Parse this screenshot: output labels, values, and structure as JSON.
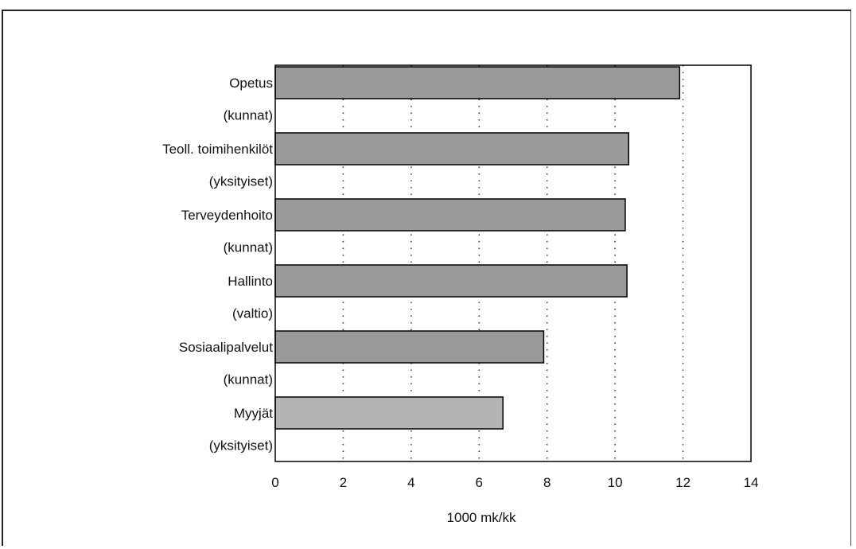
{
  "chart_data": {
    "type": "bar",
    "orientation": "horizontal",
    "categories": [
      [
        "Opetus",
        "(kunnat)"
      ],
      [
        "Teoll. toimihenkilöt",
        "(yksityiset)"
      ],
      [
        "Terveydenhoito",
        "(kunnat)"
      ],
      [
        "Hallinto",
        "(valtio)"
      ],
      [
        "Sosiaalipalvelut",
        "(kunnat)"
      ],
      [
        "Myyjät",
        "(yksityiset)"
      ]
    ],
    "values": [
      11.9,
      10.4,
      10.3,
      10.35,
      7.9,
      6.7
    ],
    "xlabel": "1000 mk/kk",
    "xlim": [
      0,
      14
    ],
    "xticks": [
      "0",
      "2",
      "4",
      "6",
      "8",
      "10",
      "12",
      "14"
    ],
    "grid": "vertical dotted",
    "colors": {
      "bar": "#9a9a9a",
      "bar_light": "#b4b4b4",
      "grid": "#333333",
      "axis": "#000000"
    }
  }
}
